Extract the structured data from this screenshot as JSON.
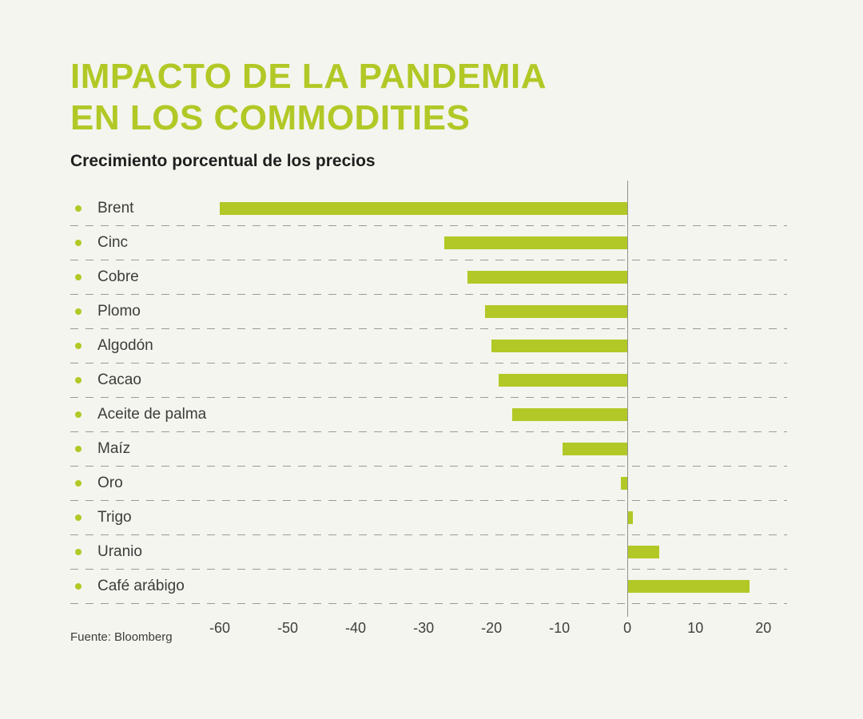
{
  "title_line1": "IMPACTO DE LA PANDEMIA",
  "title_line2": "EN LOS COMMODITIES",
  "subtitle": "Crecimiento porcentual de los precios",
  "source": "Fuente: Bloomberg",
  "colors": {
    "accent": "#b2c826",
    "background": "#f4f5ee",
    "text": "#3c3c3c",
    "dashed_line": "#9b9b93",
    "zero_line": "#90948c"
  },
  "chart_data": {
    "type": "bar",
    "orientation": "horizontal",
    "title": "Impacto de la pandemia en los commodities",
    "subtitle": "Crecimiento porcentual de los precios",
    "categories": [
      "Brent",
      "Cinc",
      "Cobre",
      "Plomo",
      "Algodón",
      "Cacao",
      "Aceite de palma",
      "Maíz",
      "Oro",
      "Trigo",
      "Uranio",
      "Café arábigo"
    ],
    "values": [
      -60,
      -27,
      -23.5,
      -21,
      -20,
      -19,
      -17,
      -9.5,
      -1,
      0.8,
      4.7,
      18
    ],
    "ticks": [
      -60,
      -50,
      -40,
      -30,
      -20,
      -10,
      0,
      10,
      20
    ],
    "xlim": [
      -62,
      23.5
    ],
    "grid": "dashed-horizontal-separators",
    "legend": "none",
    "bullet_icon": "circle-bullet-icon",
    "source": "Fuente: Bloomberg"
  }
}
